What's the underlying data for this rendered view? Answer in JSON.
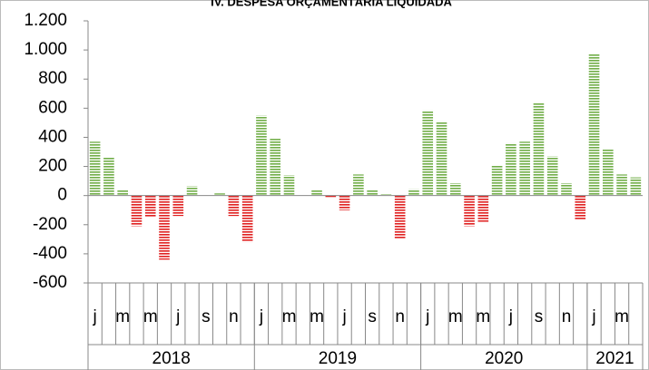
{
  "chart_data": {
    "type": "bar",
    "title": "IV. DESPESA ORÇAMENTÁRIA LIQUIDADA",
    "categories": [
      "j",
      null,
      "m",
      null,
      "m",
      null,
      "j",
      null,
      "s",
      null,
      "n",
      null,
      "j",
      null,
      "m",
      null,
      "m",
      null,
      "j",
      null,
      "s",
      null,
      "n",
      null,
      "j",
      null,
      "m",
      null,
      "m",
      null,
      "j",
      null,
      "s",
      null,
      "n",
      null,
      "j",
      null,
      "m",
      null
    ],
    "groups": [
      {
        "label": "2018",
        "span": 12
      },
      {
        "label": "2019",
        "span": 12
      },
      {
        "label": "2020",
        "span": 12
      },
      {
        "label": "2021",
        "span": 4
      }
    ],
    "values": [
      370,
      260,
      40,
      -210,
      -150,
      -440,
      -140,
      65,
      0,
      15,
      -140,
      -320,
      550,
      390,
      140,
      0,
      40,
      -10,
      -100,
      145,
      40,
      10,
      -300,
      45,
      585,
      510,
      85,
      -210,
      -180,
      210,
      360,
      370,
      640,
      270,
      85,
      -170,
      970,
      320,
      145,
      125
    ],
    "positive_color": "#70ad47",
    "negative_color": "#e02020",
    "ylim": [
      -600,
      1200
    ],
    "yticks": [
      {
        "value": -600,
        "label": "-600"
      },
      {
        "value": -400,
        "label": "-400"
      },
      {
        "value": -200,
        "label": "-200"
      },
      0,
      200,
      400,
      600,
      800,
      {
        "value": 1000,
        "label": "1.000"
      },
      {
        "value": 1200,
        "label": "1.200"
      }
    ]
  }
}
